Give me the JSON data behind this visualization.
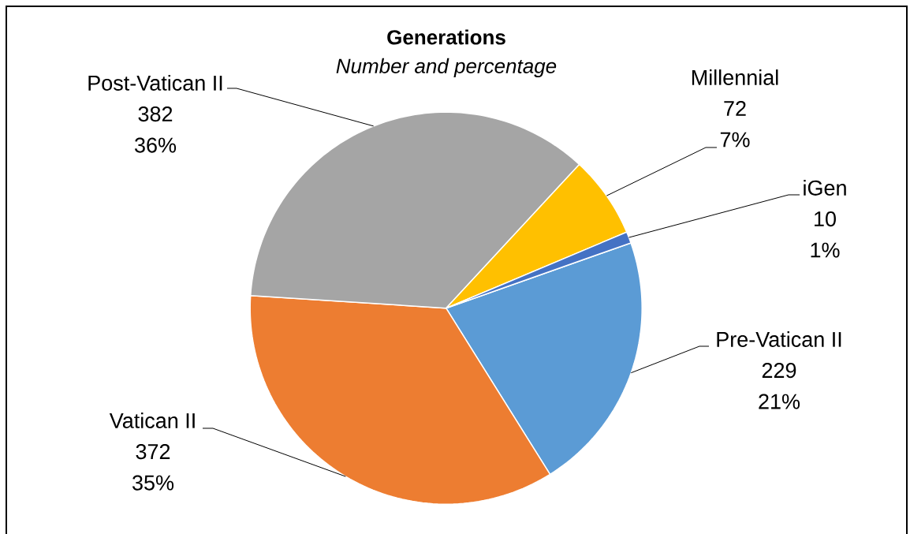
{
  "chart_data": {
    "type": "pie",
    "title": "Generations",
    "subtitle": "Number and percentage",
    "categories": [
      "Pre-Vatican II",
      "Vatican II",
      "Post-Vatican II",
      "Millennial",
      "iGen"
    ],
    "values": [
      229,
      372,
      382,
      72,
      10
    ],
    "colors": [
      "#5b9bd5",
      "#ed7d31",
      "#a5a5a5",
      "#ffc000",
      "#4472c4"
    ],
    "value_labels": [
      "229 21%",
      "372 35%",
      "382 36%",
      "72 7%",
      "10 1%"
    ]
  }
}
